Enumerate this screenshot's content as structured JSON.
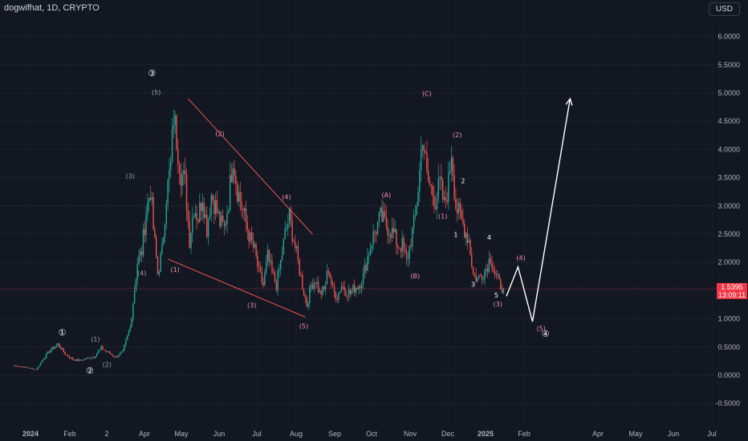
{
  "header": {
    "symbol": "dogwifhat, 1D, CRYPTO",
    "currency": "USD"
  },
  "price_tag": {
    "price": "1.5395",
    "countdown": "13:09:11"
  },
  "colors": {
    "up": "#26a69a",
    "down": "#ef5350",
    "label_red": "#f48fb1",
    "line": "#ffffff",
    "background": "#131722"
  },
  "chart_data": {
    "type": "candlestick",
    "y_ticks": [
      "6.0000",
      "5.5000",
      "5.0000",
      "4.5000",
      "4.0000",
      "3.5000",
      "3.0000",
      "2.5000",
      "2.0000",
      "1.5000",
      "1.0000",
      "0.5000",
      "0.0000",
      "-0.5000"
    ],
    "x_ticks": [
      "2024",
      "Feb",
      "2",
      "Apr",
      "May",
      "Jun",
      "Jul",
      "Aug",
      "Sep",
      "Oct",
      "Nov",
      "Dec",
      "2025",
      "Feb",
      "Apr",
      "May",
      "Jun",
      "Jul"
    ],
    "ylim": [
      -0.5,
      6.0
    ],
    "current_price": 1.5395,
    "close_path": [
      [
        0,
        0.17
      ],
      [
        5,
        0.15
      ],
      [
        10,
        0.13
      ],
      [
        15,
        0.1
      ],
      [
        20,
        0.3
      ],
      [
        25,
        0.45
      ],
      [
        30,
        0.55
      ],
      [
        35,
        0.38
      ],
      [
        40,
        0.28
      ],
      [
        45,
        0.26
      ],
      [
        50,
        0.3
      ],
      [
        55,
        0.33
      ],
      [
        60,
        0.48
      ],
      [
        65,
        0.4
      ],
      [
        70,
        0.32
      ],
      [
        75,
        0.42
      ],
      [
        80,
        0.85
      ],
      [
        82,
        1.3
      ],
      [
        85,
        2.0
      ],
      [
        88,
        2.2
      ],
      [
        91,
        2.9
      ],
      [
        94,
        3.3
      ],
      [
        96,
        2.6
      ],
      [
        99,
        1.8
      ],
      [
        102,
        2.2
      ],
      [
        105,
        3.2
      ],
      [
        108,
        3.7
      ],
      [
        110,
        4.6
      ],
      [
        112,
        4.2
      ],
      [
        115,
        3.6
      ],
      [
        118,
        3.4
      ],
      [
        121,
        2.4
      ],
      [
        124,
        3.0
      ],
      [
        127,
        2.8
      ],
      [
        130,
        3.2
      ],
      [
        133,
        2.6
      ],
      [
        136,
        3.2
      ],
      [
        139,
        3.0
      ],
      [
        142,
        2.7
      ],
      [
        145,
        2.6
      ],
      [
        148,
        3.1
      ],
      [
        151,
        3.9
      ],
      [
        154,
        3.3
      ],
      [
        157,
        3.0
      ],
      [
        160,
        2.7
      ],
      [
        163,
        2.4
      ],
      [
        166,
        2.2
      ],
      [
        169,
        1.8
      ],
      [
        172,
        1.6
      ],
      [
        175,
        2.1
      ],
      [
        178,
        1.8
      ],
      [
        181,
        1.6
      ],
      [
        184,
        2.0
      ],
      [
        187,
        2.5
      ],
      [
        190,
        2.8
      ],
      [
        193,
        2.4
      ],
      [
        196,
        2.0
      ],
      [
        199,
        1.6
      ],
      [
        202,
        1.25
      ],
      [
        205,
        1.6
      ],
      [
        208,
        1.7
      ],
      [
        211,
        1.45
      ],
      [
        214,
        1.5
      ],
      [
        217,
        1.9
      ],
      [
        220,
        1.5
      ],
      [
        223,
        1.4
      ],
      [
        226,
        1.6
      ],
      [
        229,
        1.5
      ],
      [
        232,
        1.45
      ],
      [
        235,
        1.55
      ],
      [
        238,
        1.6
      ],
      [
        241,
        1.75
      ],
      [
        244,
        2.1
      ],
      [
        247,
        2.4
      ],
      [
        250,
        2.6
      ],
      [
        253,
        2.8
      ],
      [
        256,
        2.7
      ],
      [
        259,
        2.6
      ],
      [
        262,
        2.5
      ],
      [
        265,
        2.3
      ],
      [
        268,
        2.3
      ],
      [
        271,
        2.0
      ],
      [
        274,
        2.4
      ],
      [
        277,
        2.8
      ],
      [
        280,
        3.6
      ],
      [
        282,
        4.3
      ],
      [
        285,
        3.5
      ],
      [
        288,
        3.3
      ],
      [
        291,
        3.1
      ],
      [
        294,
        3.4
      ],
      [
        297,
        3.0
      ],
      [
        300,
        3.4
      ],
      [
        302,
        4.0
      ],
      [
        305,
        3.0
      ],
      [
        308,
        2.8
      ],
      [
        311,
        2.6
      ],
      [
        314,
        2.4
      ],
      [
        317,
        1.8
      ],
      [
        320,
        1.7
      ],
      [
        323,
        1.8
      ],
      [
        326,
        1.9
      ],
      [
        329,
        2.1
      ],
      [
        332,
        1.8
      ],
      [
        335,
        1.62
      ],
      [
        338,
        1.54
      ]
    ],
    "projection": [
      [
        340,
        1.4
      ],
      [
        348,
        1.92
      ],
      [
        358,
        0.95
      ],
      [
        384,
        4.9
      ]
    ],
    "wave_labels": [
      {
        "text": "③",
        "x": 95,
        "y": 5.3,
        "color": "#ffffff"
      },
      {
        "text": "(5)",
        "x": 98,
        "y": 4.97,
        "color": "#9e9e9e"
      },
      {
        "text": "(3)",
        "x": 80,
        "y": 3.49,
        "color": "#9e9e9e"
      },
      {
        "text": "(4)",
        "x": 88,
        "y": 1.77,
        "color": "#9e9e9e"
      },
      {
        "text": "①",
        "x": 33,
        "y": 0.7,
        "color": "#ffffff"
      },
      {
        "text": "(1)",
        "x": 56,
        "y": 0.6,
        "color": "#9e9e9e"
      },
      {
        "text": "②",
        "x": 52,
        "y": 0.03,
        "color": "#ffffff"
      },
      {
        "text": "(2)",
        "x": 64,
        "y": 0.15,
        "color": "#9e9e9e"
      },
      {
        "text": "(2)",
        "x": 142,
        "y": 4.24,
        "color": "#f48fb1"
      },
      {
        "text": "(1)",
        "x": 111,
        "y": 1.83,
        "color": "#f48fb1"
      },
      {
        "text": "(4)",
        "x": 188,
        "y": 3.12,
        "color": "#f48fb1"
      },
      {
        "text": "(3)",
        "x": 164,
        "y": 1.2,
        "color": "#f48fb1"
      },
      {
        "text": "(5)",
        "x": 200,
        "y": 0.83,
        "color": "#f48fb1"
      },
      {
        "text": "(A)",
        "x": 257,
        "y": 3.15,
        "color": "#f48fb1"
      },
      {
        "text": "(B)",
        "x": 277,
        "y": 1.72,
        "color": "#f48fb1"
      },
      {
        "text": "(C)",
        "x": 285,
        "y": 4.95,
        "color": "#f48fb1"
      },
      {
        "text": "(2)",
        "x": 306,
        "y": 4.22,
        "color": "#f48fb1"
      },
      {
        "text": "2",
        "x": 310,
        "y": 3.4,
        "color": "#ffffff"
      },
      {
        "text": "(1)",
        "x": 296,
        "y": 2.78,
        "color": "#f48fb1"
      },
      {
        "text": "1",
        "x": 305,
        "y": 2.45,
        "color": "#ffffff"
      },
      {
        "text": "4",
        "x": 328,
        "y": 2.4,
        "color": "#ffffff"
      },
      {
        "text": "3",
        "x": 317,
        "y": 1.57,
        "color": "#ffffff"
      },
      {
        "text": "5",
        "x": 333,
        "y": 1.38,
        "color": "#ffffff"
      },
      {
        "text": "(3)",
        "x": 334,
        "y": 1.22,
        "color": "#f48fb1"
      },
      {
        "text": "(4)",
        "x": 350,
        "y": 2.04,
        "color": "#f48fb1"
      },
      {
        "text": "(5)",
        "x": 364,
        "y": 0.79,
        "color": "#f48fb1"
      },
      {
        "text": "④",
        "x": 367,
        "y": 0.68,
        "color": "#ffffff"
      }
    ],
    "wedge_lines": [
      {
        "from": [
          120,
          4.9
        ],
        "to": [
          206,
          2.5
        ]
      },
      {
        "from": [
          106,
          2.06
        ],
        "to": [
          201,
          1.03
        ]
      }
    ]
  }
}
